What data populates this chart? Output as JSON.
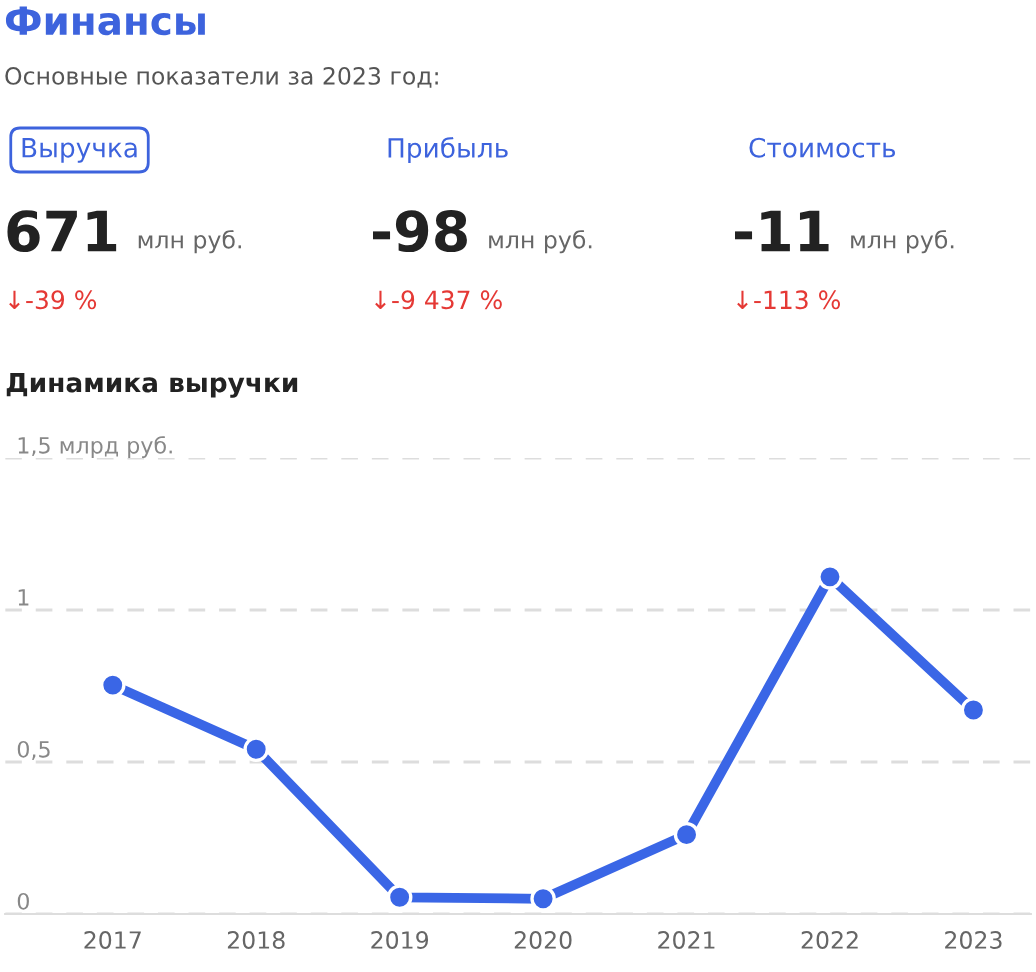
{
  "chart_data": [
    {
      "type": "other",
      "title": "Финансы",
      "subtitle": "Основные показатели за 2023 год:",
      "categories": [
        "Выручка",
        "Прибыль",
        "Стоимость"
      ],
      "annotations": [
        "671",
        "млн руб.",
        "↓-39 %",
        "-98",
        "млн руб.",
        "↓-9 437 %",
        "-11",
        "млн руб.",
        "↓-113 %"
      ]
    },
    {
      "type": "line",
      "title": "Динамика выручки",
      "categories": [
        "2017",
        "2018",
        "2019",
        "2020",
        "2021",
        "2022",
        "2023"
      ],
      "series": [
        {
          "color": "#3a66e6",
          "values": [
            0.753,
            0.542,
            0.055,
            0.05,
            0.261,
            1.109,
            0.671
          ]
        }
      ],
      "ylim": [
        0,
        1.5
      ],
      "yticks": [
        0,
        {
          "value": 0.5,
          "label": "0,5"
        },
        1,
        {
          "value": 1.5,
          "label": "1,5 млрд руб."
        }
      ],
      "grid": "y",
      "marker": "circle",
      "line_style": "solid"
    }
  ]
}
